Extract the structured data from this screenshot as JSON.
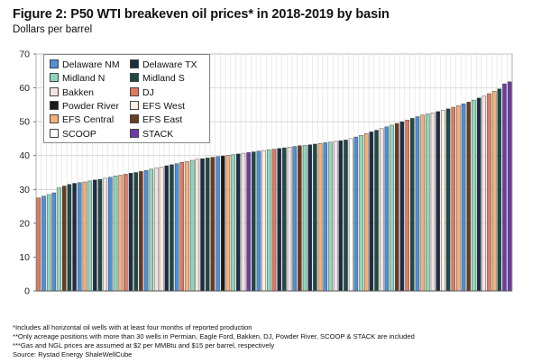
{
  "title": "Figure 2: P50 WTI breakeven oil prices* in 2018-2019 by basin",
  "subtitle": "Dollars per barrel",
  "notes": [
    "*Includes all horizontal oil wells with at least four months of reported production",
    "**Only acreage positions with more than 30 wells in Permian, Eagle Ford, Bakken, DJ, Powder River, SCOOP & STACK are included",
    "***Gas and NGL prices are assumed at $2 per MMBtu and $15 per barrel, respectively",
    "Source: Rystad Energy ShaleWellCube"
  ],
  "legend": [
    {
      "label": "Delaware NM",
      "color": "#4f8fd6"
    },
    {
      "label": "Delaware TX",
      "color": "#1e2d44"
    },
    {
      "label": "Midland N",
      "color": "#8fd6b8"
    },
    {
      "label": "Midland S",
      "color": "#1e4a44"
    },
    {
      "label": "Bakken",
      "color": "#f3e3e3"
    },
    {
      "label": "DJ",
      "color": "#e07a5f"
    },
    {
      "label": "Powder River",
      "color": "#1a1a1a"
    },
    {
      "label": "EFS West",
      "color": "#fdeee2"
    },
    {
      "label": "EFS Central",
      "color": "#f2b27a"
    },
    {
      "label": "EFS East",
      "color": "#6b3b22"
    },
    {
      "label": "SCOOP",
      "color": "#ffffff"
    },
    {
      "label": "STACK",
      "color": "#6e3aa6"
    }
  ],
  "chart_data": {
    "type": "bar",
    "title": "Figure 2: P50 WTI breakeven oil prices* in 2018-2019 by basin",
    "ylabel": "Dollars per barrel",
    "ylim": [
      0,
      70
    ],
    "yticks": [
      0,
      10,
      20,
      30,
      40,
      50,
      60,
      70
    ],
    "grid": true,
    "legend_position": "top-left",
    "series_order": [
      "Delaware NM",
      "Delaware TX",
      "Midland N",
      "Midland S",
      "Bakken",
      "DJ",
      "Powder River",
      "EFS West",
      "EFS Central",
      "EFS East",
      "SCOOP",
      "STACK"
    ],
    "bars": [
      {
        "basin": "DJ",
        "value": 27.5
      },
      {
        "basin": "Delaware NM",
        "value": 28.0
      },
      {
        "basin": "Midland N",
        "value": 28.5
      },
      {
        "basin": "Delaware NM",
        "value": 29.0
      },
      {
        "basin": "Midland N",
        "value": 30.5
      },
      {
        "basin": "EFS East",
        "value": 31.0
      },
      {
        "basin": "Midland S",
        "value": 31.5
      },
      {
        "basin": "Delaware TX",
        "value": 31.8
      },
      {
        "basin": "Delaware NM",
        "value": 32.0
      },
      {
        "basin": "EFS Central",
        "value": 32.2
      },
      {
        "basin": "Midland N",
        "value": 32.5
      },
      {
        "basin": "Delaware TX",
        "value": 32.8
      },
      {
        "basin": "Midland S",
        "value": 33.0
      },
      {
        "basin": "Bakken",
        "value": 33.3
      },
      {
        "basin": "Delaware NM",
        "value": 33.6
      },
      {
        "basin": "Midland N",
        "value": 34.0
      },
      {
        "basin": "EFS Central",
        "value": 34.2
      },
      {
        "basin": "DJ",
        "value": 34.5
      },
      {
        "basin": "Delaware TX",
        "value": 34.8
      },
      {
        "basin": "Midland S",
        "value": 35.0
      },
      {
        "basin": "EFS East",
        "value": 35.3
      },
      {
        "basin": "Delaware NM",
        "value": 35.6
      },
      {
        "basin": "Midland N",
        "value": 36.0
      },
      {
        "basin": "Bakken",
        "value": 36.3
      },
      {
        "basin": "EFS West",
        "value": 36.6
      },
      {
        "basin": "Delaware TX",
        "value": 37.0
      },
      {
        "basin": "Midland S",
        "value": 37.3
      },
      {
        "basin": "Delaware NM",
        "value": 37.6
      },
      {
        "basin": "DJ",
        "value": 38.0
      },
      {
        "basin": "EFS Central",
        "value": 38.3
      },
      {
        "basin": "Midland N",
        "value": 38.6
      },
      {
        "basin": "Bakken",
        "value": 38.9
      },
      {
        "basin": "Delaware TX",
        "value": 39.1
      },
      {
        "basin": "Midland S",
        "value": 39.3
      },
      {
        "basin": "EFS East",
        "value": 39.5
      },
      {
        "basin": "Delaware NM",
        "value": 39.7
      },
      {
        "basin": "Powder River",
        "value": 39.9
      },
      {
        "basin": "EFS Central",
        "value": 40.1
      },
      {
        "basin": "Midland N",
        "value": 40.3
      },
      {
        "basin": "Delaware TX",
        "value": 40.5
      },
      {
        "basin": "Bakken",
        "value": 40.7
      },
      {
        "basin": "STACK",
        "value": 40.9
      },
      {
        "basin": "Midland S",
        "value": 41.1
      },
      {
        "basin": "Delaware NM",
        "value": 41.3
      },
      {
        "basin": "EFS West",
        "value": 41.5
      },
      {
        "basin": "Midland N",
        "value": 41.7
      },
      {
        "basin": "DJ",
        "value": 41.9
      },
      {
        "basin": "Delaware TX",
        "value": 42.1
      },
      {
        "basin": "Midland S",
        "value": 42.3
      },
      {
        "basin": "Bakken",
        "value": 42.5
      },
      {
        "basin": "Delaware NM",
        "value": 42.7
      },
      {
        "basin": "EFS East",
        "value": 42.9
      },
      {
        "basin": "Midland N",
        "value": 43.0
      },
      {
        "basin": "Delaware TX",
        "value": 43.2
      },
      {
        "basin": "Midland S",
        "value": 43.4
      },
      {
        "basin": "EFS Central",
        "value": 43.6
      },
      {
        "basin": "Delaware NM",
        "value": 43.8
      },
      {
        "basin": "Midland N",
        "value": 44.0
      },
      {
        "basin": "Bakken",
        "value": 44.2
      },
      {
        "basin": "Delaware TX",
        "value": 44.4
      },
      {
        "basin": "Midland S",
        "value": 44.6
      },
      {
        "basin": "SCOOP",
        "value": 45.0
      },
      {
        "basin": "Delaware NM",
        "value": 45.5
      },
      {
        "basin": "Midland N",
        "value": 46.0
      },
      {
        "basin": "EFS Central",
        "value": 46.5
      },
      {
        "basin": "Delaware TX",
        "value": 47.0
      },
      {
        "basin": "Midland S",
        "value": 47.5
      },
      {
        "basin": "Bakken",
        "value": 48.0
      },
      {
        "basin": "Delaware NM",
        "value": 48.5
      },
      {
        "basin": "Midland N",
        "value": 49.0
      },
      {
        "basin": "EFS East",
        "value": 49.5
      },
      {
        "basin": "Delaware TX",
        "value": 50.0
      },
      {
        "basin": "DJ",
        "value": 50.5
      },
      {
        "basin": "Midland S",
        "value": 51.0
      },
      {
        "basin": "Delaware NM",
        "value": 51.5
      },
      {
        "basin": "EFS Central",
        "value": 52.0
      },
      {
        "basin": "Midland N",
        "value": 52.3
      },
      {
        "basin": "Bakken",
        "value": 52.6
      },
      {
        "basin": "Delaware TX",
        "value": 53.0
      },
      {
        "basin": "EFS West",
        "value": 53.4
      },
      {
        "basin": "Midland S",
        "value": 53.8
      },
      {
        "basin": "DJ",
        "value": 54.3
      },
      {
        "basin": "EFS Central",
        "value": 54.8
      },
      {
        "basin": "Delaware NM",
        "value": 55.3
      },
      {
        "basin": "EFS East",
        "value": 55.8
      },
      {
        "basin": "Midland N",
        "value": 56.4
      },
      {
        "basin": "Delaware TX",
        "value": 57.0
      },
      {
        "basin": "Bakken",
        "value": 57.6
      },
      {
        "basin": "DJ",
        "value": 58.3
      },
      {
        "basin": "EFS Central",
        "value": 59.0
      },
      {
        "basin": "Midland S",
        "value": 59.7
      },
      {
        "basin": "STACK",
        "value": 61.2
      },
      {
        "basin": "STACK",
        "value": 61.8
      }
    ]
  }
}
